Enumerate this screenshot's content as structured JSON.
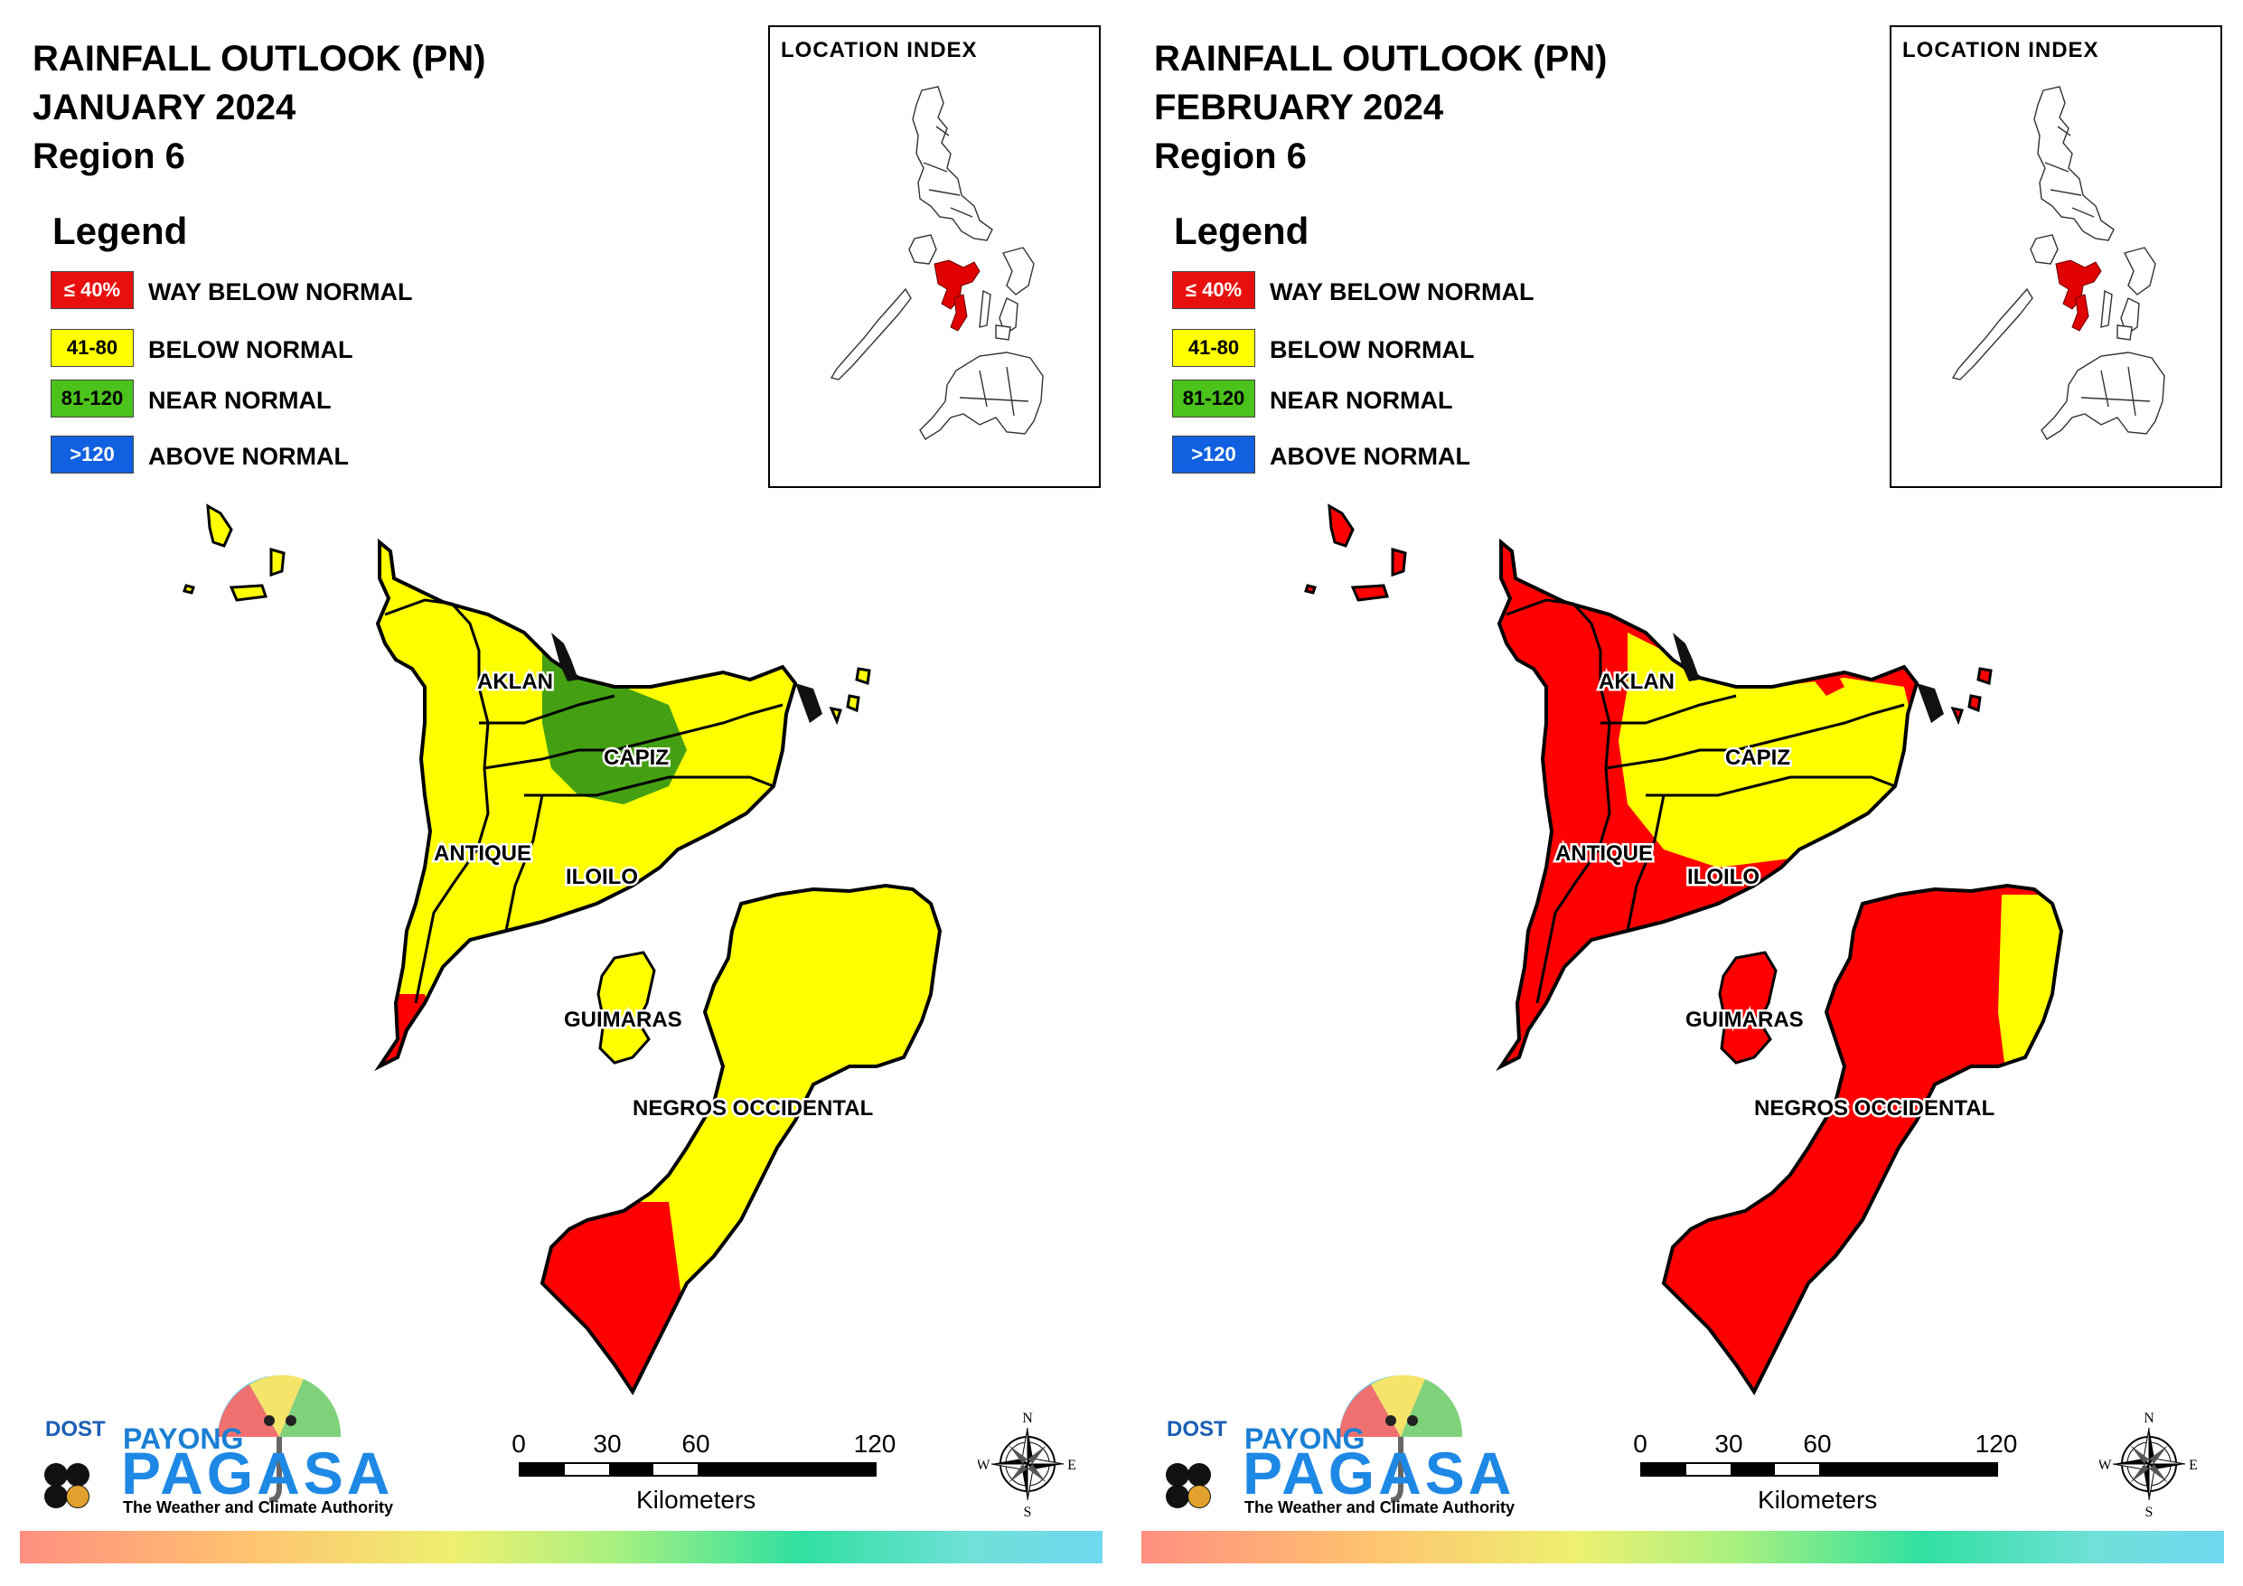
{
  "panels": [
    {
      "title_line1": "RAINFALL OUTLOOK (PN)",
      "title_line2": "JANUARY 2024",
      "title_line3": "Region 6",
      "legend_title": "Legend",
      "legend": [
        {
          "range": "≤ 40%",
          "label": "WAY BELOW NORMAL",
          "color": "#e8100e",
          "text_color": "#ffffff"
        },
        {
          "range": "41-80",
          "label": "BELOW NORMAL",
          "color": "#ffff00",
          "text_color": "#000000"
        },
        {
          "range": "81-120",
          "label": "NEAR NORMAL",
          "color": "#4cc21c",
          "text_color": "#000000"
        },
        {
          "range": ">120",
          "label": "ABOVE NORMAL",
          "color": "#1160e0",
          "text_color": "#ffffff"
        }
      ],
      "inset_title": "LOCATION INDEX",
      "provinces": {
        "aklan": "AKLAN",
        "capiz": "CAPIZ",
        "antique": "ANTIQUE",
        "iloilo": "ILOILO",
        "guimaras": "GUIMARAS",
        "negros": "NEGROS OCCIDENTAL"
      },
      "map_colors": {
        "base": "#ffff00",
        "overlay": "#44a012",
        "south_negros": "#ff0000",
        "south_antique": "#ff0000"
      },
      "scale": {
        "ticks": [
          "0",
          "30",
          "60",
          "120"
        ],
        "unit": "Kilometers"
      },
      "compass": {
        "n": "N",
        "s": "S",
        "e": "E",
        "w": "W"
      },
      "logo": {
        "dost": "DOST",
        "payong": "PAYONG",
        "pagasa": "PAGASA",
        "tagline": "The Weather and Climate Authority"
      }
    },
    {
      "title_line1": "RAINFALL OUTLOOK (PN)",
      "title_line2": "FEBRUARY 2024",
      "title_line3": "Region 6",
      "legend_title": "Legend",
      "legend": [
        {
          "range": "≤ 40%",
          "label": "WAY BELOW NORMAL",
          "color": "#e8100e",
          "text_color": "#ffffff"
        },
        {
          "range": "41-80",
          "label": "BELOW NORMAL",
          "color": "#ffff00",
          "text_color": "#000000"
        },
        {
          "range": "81-120",
          "label": "NEAR NORMAL",
          "color": "#4cc21c",
          "text_color": "#000000"
        },
        {
          "range": ">120",
          "label": "ABOVE NORMAL",
          "color": "#1160e0",
          "text_color": "#ffffff"
        }
      ],
      "inset_title": "LOCATION INDEX",
      "provinces": {
        "aklan": "AKLAN",
        "capiz": "CAPIZ",
        "antique": "ANTIQUE",
        "iloilo": "ILOILO",
        "guimaras": "GUIMARAS",
        "negros": "NEGROS OCCIDENTAL"
      },
      "map_colors": {
        "base": "#ff0000",
        "overlay": "#ffff00",
        "south_negros": "#ff0000",
        "south_antique": "#ff0000"
      },
      "scale": {
        "ticks": [
          "0",
          "30",
          "60",
          "120"
        ],
        "unit": "Kilometers"
      },
      "compass": {
        "n": "N",
        "s": "S",
        "e": "E",
        "w": "W"
      },
      "logo": {
        "dost": "DOST",
        "payong": "PAYONG",
        "pagasa": "PAGASA",
        "tagline": "The Weather and Climate Authority"
      }
    }
  ]
}
